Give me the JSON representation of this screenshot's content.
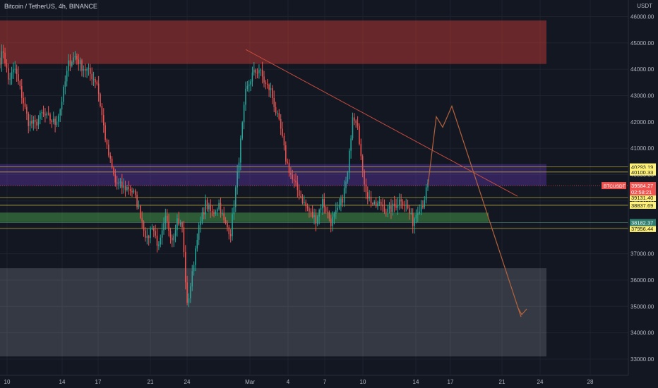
{
  "header": {
    "title": "Bitcoin / TetherUS, 4h, BINANCE",
    "currency": "USDT"
  },
  "chart_data": {
    "type": "candlestick",
    "symbol": "BTCUSDT",
    "timeframe": "4h",
    "exchange": "BINANCE",
    "ylim": [
      33000,
      46400
    ],
    "y_ticks": [
      33000,
      34000,
      35000,
      36000,
      37000,
      38000,
      39000,
      40000,
      41000,
      42000,
      43000,
      44000,
      45000,
      46000
    ],
    "y_tick_labels": [
      "33000.00",
      "34000.00",
      "35000.00",
      "36000.00",
      "37000.00",
      "38000.00",
      "39000.00",
      "40000.00",
      "41000.00",
      "42000.00",
      "43000.00",
      "44000.00",
      "45000.00",
      "46000.00"
    ],
    "x_tick_labels": [
      "10",
      "14",
      "17",
      "21",
      "24",
      "Mar",
      "4",
      "7",
      "10",
      "14",
      "17",
      "21",
      "24",
      "28"
    ],
    "grid": true,
    "price_path": [
      [
        44200,
        7
      ],
      [
        44700,
        3
      ],
      [
        43600,
        3
      ],
      [
        44000,
        4
      ],
      [
        42000,
        8
      ],
      [
        41900,
        4
      ],
      [
        42300,
        4
      ],
      [
        42100,
        5
      ],
      [
        41950,
        3
      ],
      [
        42500,
        3
      ],
      [
        44200,
        5
      ],
      [
        44500,
        4
      ],
      [
        44100,
        4
      ],
      [
        43900,
        4
      ],
      [
        43500,
        5
      ],
      [
        41000,
        6
      ],
      [
        39700,
        5
      ],
      [
        39500,
        5
      ],
      [
        39500,
        3
      ],
      [
        39300,
        3
      ],
      [
        38500,
        4
      ],
      [
        37500,
        4
      ],
      [
        38100,
        3
      ],
      [
        37200,
        4
      ],
      [
        38300,
        4
      ],
      [
        37600,
        4
      ],
      [
        38300,
        3
      ],
      [
        38000,
        3
      ],
      [
        35000,
        3
      ],
      [
        36200,
        3
      ],
      [
        37700,
        3
      ],
      [
        38900,
        5
      ],
      [
        38500,
        4
      ],
      [
        38900,
        4
      ],
      [
        38200,
        3
      ],
      [
        37800,
        4
      ],
      [
        40000,
        4
      ],
      [
        43100,
        5
      ],
      [
        43800,
        4
      ],
      [
        44000,
        4
      ],
      [
        43400,
        4
      ],
      [
        43200,
        3
      ],
      [
        42400,
        3
      ],
      [
        41700,
        3
      ],
      [
        40600,
        3
      ],
      [
        39800,
        4
      ],
      [
        39300,
        4
      ],
      [
        38900,
        3
      ],
      [
        38500,
        4
      ],
      [
        38300,
        3
      ],
      [
        39000,
        4
      ],
      [
        38200,
        5
      ],
      [
        38600,
        4
      ],
      [
        39100,
        3
      ],
      [
        40000,
        3
      ],
      [
        42300,
        3
      ],
      [
        42000,
        3
      ],
      [
        40000,
        3
      ],
      [
        39200,
        3
      ],
      [
        38800,
        4
      ],
      [
        38900,
        4
      ],
      [
        38600,
        4
      ],
      [
        38800,
        4
      ],
      [
        39100,
        4
      ],
      [
        38700,
        4
      ],
      [
        38200,
        3
      ],
      [
        38700,
        3
      ],
      [
        38900,
        3
      ],
      [
        39600,
        3
      ]
    ],
    "zones": [
      {
        "name": "resistance-zone",
        "from": 44200,
        "to": 45850,
        "color": "#f44336"
      },
      {
        "name": "range-zone",
        "from": 39580,
        "to": 40400,
        "color": "#673ab7"
      },
      {
        "name": "support-zone",
        "from": 38200,
        "to": 38560,
        "color": "#4caf50"
      },
      {
        "name": "demand-zone",
        "from": 33100,
        "to": 36450,
        "color": "#b2b5be"
      }
    ],
    "levels": [
      {
        "value": 40293.19,
        "label": "40293.19",
        "bg": "#fff176",
        "fg": "#131722"
      },
      {
        "value": 40100.33,
        "label": "40100.33",
        "bg": "#fff176",
        "fg": "#131722"
      },
      {
        "value": 39131.4,
        "label": "39131.40",
        "bg": "#fff176",
        "fg": "#131722"
      },
      {
        "value": 38837.69,
        "label": "38837.69",
        "bg": "#fff176",
        "fg": "#131722"
      },
      {
        "value": 37956.44,
        "label": "37956.44",
        "bg": "#fff176",
        "fg": "#131722"
      }
    ],
    "current_price": {
      "symbol": "BTCUSDT",
      "value": 39584.27,
      "label": "39584.27",
      "countdown": "02:58:21"
    },
    "support_label": {
      "value": 38182.37,
      "label": "38182.37"
    },
    "colors": {
      "up": "#26a69a",
      "down": "#ef5350",
      "background": "#131722",
      "grid": "#1e222d",
      "axis_text": "#b2b5be",
      "trendline": "#c64c3f",
      "projection": "#b4633c"
    }
  }
}
